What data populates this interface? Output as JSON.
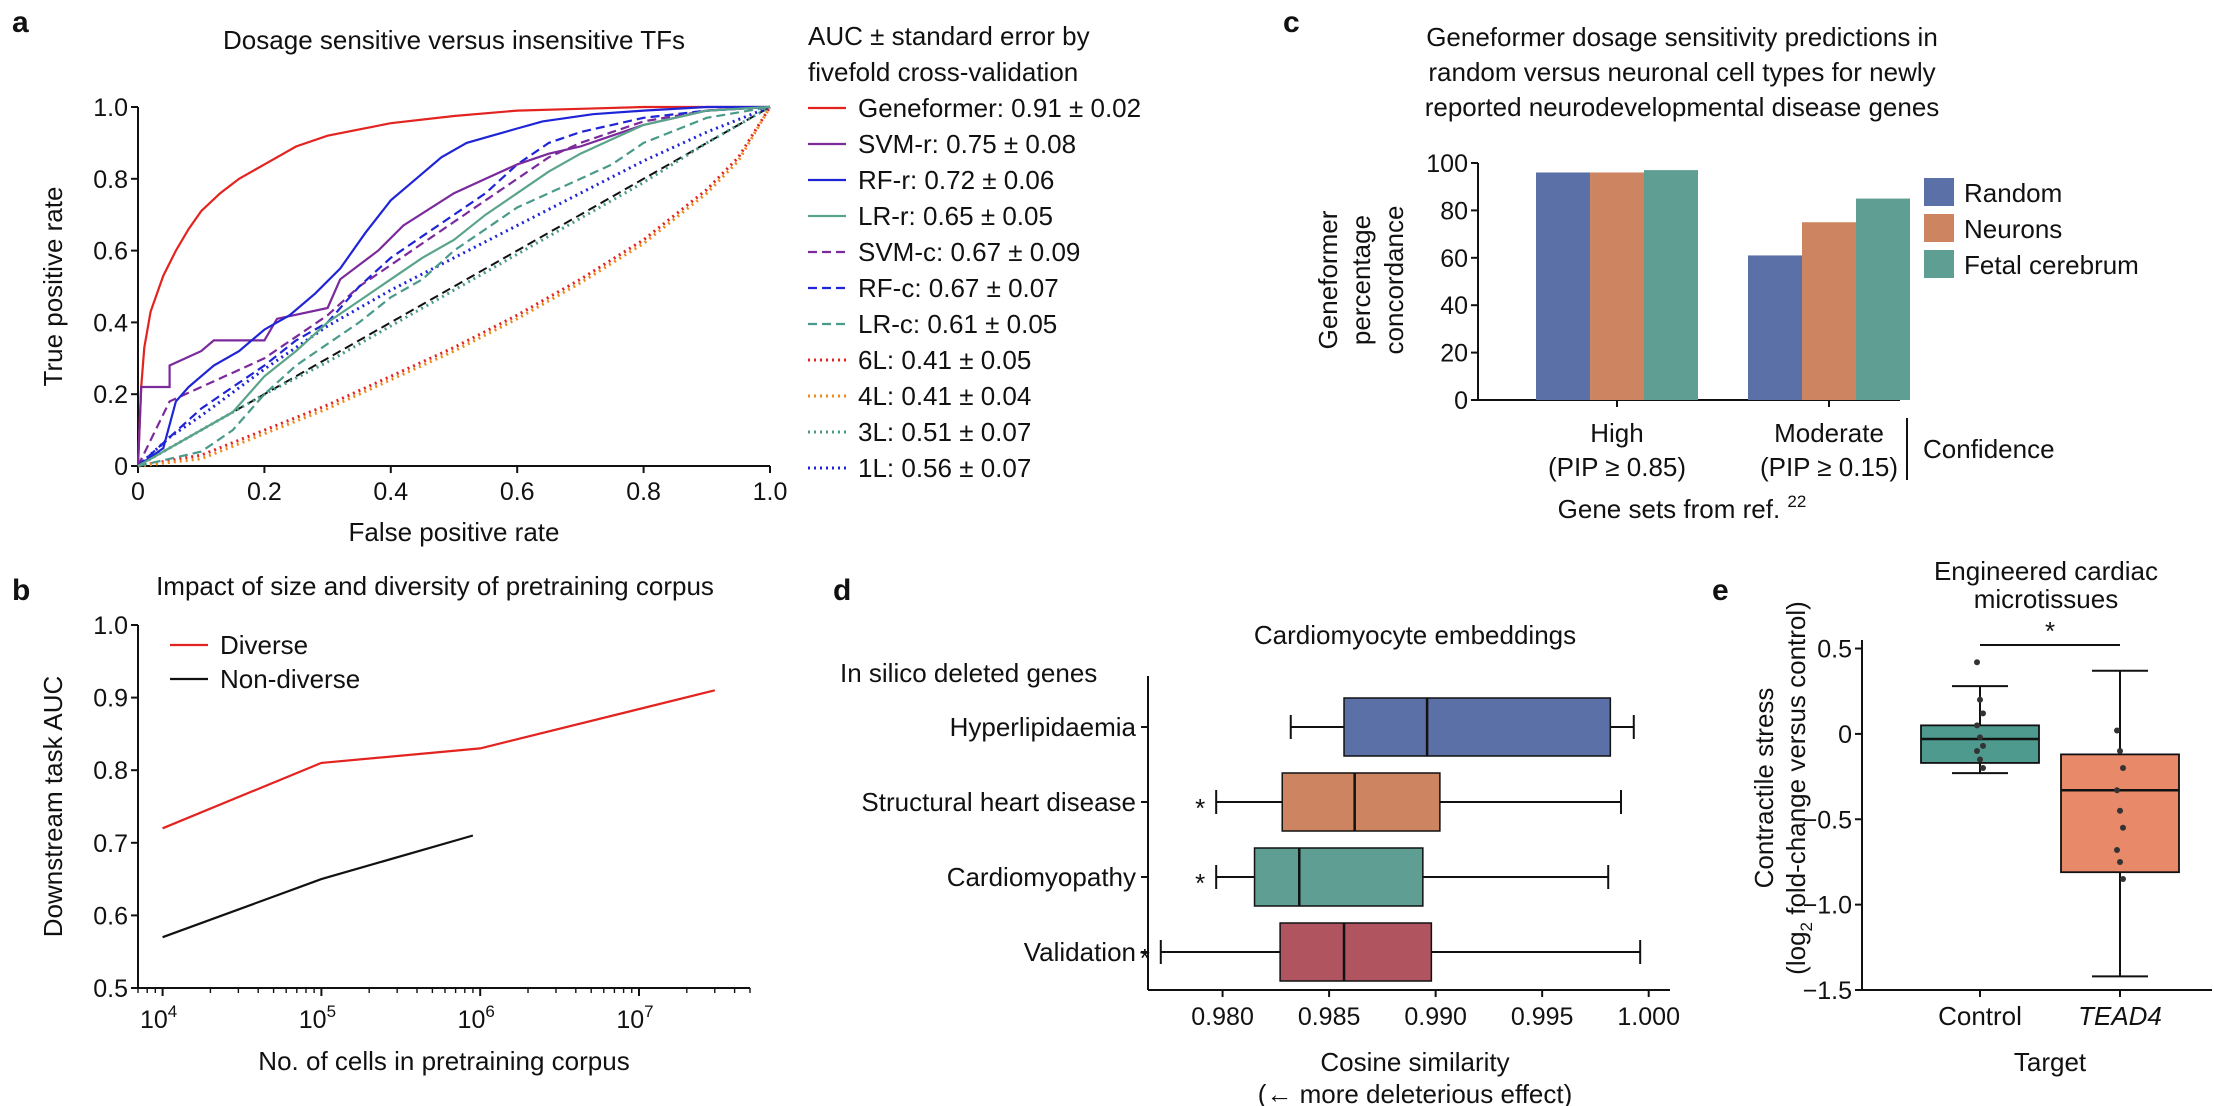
{
  "panel_letters": {
    "a": "a",
    "b": "b",
    "c": "c",
    "d": "d",
    "e": "e"
  },
  "colors": {
    "random": "#5b70a6",
    "neurons": "#cc8560",
    "fetal": "#5e9e93",
    "red": "#e3231f",
    "purple": "#7b2a9c",
    "blue": "#1f25d6",
    "teal": "#5aa48a",
    "lr_c": "#4a9a8a",
    "orange": "#f08a1c",
    "hyper": "#5b70a6",
    "structural": "#cc8560",
    "cardio": "#5e9e93",
    "validation": "#b05560",
    "control": "#4e9a8e",
    "tead4": "#e88a6a"
  },
  "chart_data": [
    {
      "panel": "a",
      "type": "line",
      "title": "Dosage sensitive versus insensitive TFs",
      "xlabel": "False positive rate",
      "ylabel": "True positive rate",
      "xlim": [
        0,
        1
      ],
      "ylim": [
        0,
        1
      ],
      "xticks": [
        "0",
        "0.2",
        "0.4",
        "0.6",
        "0.8",
        "1.0"
      ],
      "yticks": [
        "0",
        "0.2",
        "0.4",
        "0.6",
        "0.8",
        "1.0"
      ],
      "legend_title_lines": [
        "AUC ± standard error by",
        "fivefold cross-validation"
      ],
      "legend_position": "right",
      "series": [
        {
          "name": "Geneformer: 0.91 ± 0.02",
          "style": "solid",
          "color": "#e3231f",
          "x": [
            0,
            0.005,
            0.01,
            0.02,
            0.04,
            0.06,
            0.08,
            0.1,
            0.13,
            0.16,
            0.2,
            0.25,
            0.3,
            0.4,
            0.5,
            0.6,
            0.7,
            0.8,
            0.9,
            1.0
          ],
          "y": [
            0,
            0.22,
            0.33,
            0.43,
            0.53,
            0.6,
            0.66,
            0.71,
            0.76,
            0.8,
            0.84,
            0.89,
            0.92,
            0.955,
            0.975,
            0.99,
            0.995,
            1.0,
            1.0,
            1.0
          ]
        },
        {
          "name": "SVM-r: 0.75 ± 0.08",
          "style": "solid",
          "color": "#7b2a9c",
          "x": [
            0,
            0.005,
            0.05,
            0.05,
            0.1,
            0.12,
            0.2,
            0.22,
            0.3,
            0.32,
            0.38,
            0.42,
            0.5,
            0.55,
            0.6,
            0.65,
            0.7,
            0.75,
            0.8,
            0.85,
            0.9,
            1.0
          ],
          "y": [
            0,
            0.22,
            0.22,
            0.28,
            0.32,
            0.35,
            0.35,
            0.41,
            0.44,
            0.52,
            0.6,
            0.67,
            0.76,
            0.8,
            0.84,
            0.87,
            0.89,
            0.92,
            0.95,
            0.97,
            0.99,
            1.0
          ]
        },
        {
          "name": "RF-r: 0.72 ± 0.06",
          "style": "solid",
          "color": "#1f25d6",
          "x": [
            0,
            0.04,
            0.06,
            0.08,
            0.12,
            0.16,
            0.2,
            0.24,
            0.28,
            0.32,
            0.36,
            0.4,
            0.44,
            0.48,
            0.52,
            0.56,
            0.6,
            0.64,
            0.68,
            0.72,
            0.8,
            0.9,
            1.0
          ],
          "y": [
            0,
            0.05,
            0.18,
            0.22,
            0.28,
            0.32,
            0.38,
            0.42,
            0.48,
            0.55,
            0.65,
            0.74,
            0.8,
            0.86,
            0.9,
            0.92,
            0.94,
            0.96,
            0.97,
            0.98,
            0.99,
            1.0,
            1.0
          ]
        },
        {
          "name": "LR-r: 0.65 ± 0.05",
          "style": "solid",
          "color": "#5aa48a",
          "x": [
            0,
            0.05,
            0.1,
            0.15,
            0.2,
            0.25,
            0.3,
            0.35,
            0.4,
            0.45,
            0.5,
            0.55,
            0.6,
            0.65,
            0.7,
            0.75,
            0.8,
            0.9,
            1.0
          ],
          "y": [
            0,
            0.05,
            0.1,
            0.15,
            0.25,
            0.32,
            0.4,
            0.46,
            0.52,
            0.58,
            0.63,
            0.7,
            0.76,
            0.82,
            0.87,
            0.91,
            0.95,
            0.99,
            1.0
          ]
        },
        {
          "name": "SVM-c: 0.67 ± 0.09",
          "style": "dash",
          "color": "#7b2a9c",
          "x": [
            0,
            0.05,
            0.1,
            0.15,
            0.2,
            0.25,
            0.3,
            0.35,
            0.4,
            0.45,
            0.5,
            0.55,
            0.6,
            0.65,
            0.7,
            0.75,
            0.8,
            0.9,
            1.0
          ],
          "y": [
            0,
            0.18,
            0.22,
            0.26,
            0.3,
            0.36,
            0.42,
            0.5,
            0.56,
            0.62,
            0.68,
            0.74,
            0.8,
            0.86,
            0.9,
            0.93,
            0.96,
            0.99,
            1.0
          ]
        },
        {
          "name": "RF-c: 0.67 ± 0.07",
          "style": "dash",
          "color": "#1f25d6",
          "x": [
            0,
            0.05,
            0.1,
            0.15,
            0.2,
            0.25,
            0.3,
            0.35,
            0.4,
            0.45,
            0.5,
            0.55,
            0.6,
            0.65,
            0.7,
            0.8,
            0.9,
            1.0
          ],
          "y": [
            0,
            0.08,
            0.16,
            0.22,
            0.28,
            0.35,
            0.4,
            0.5,
            0.58,
            0.64,
            0.7,
            0.76,
            0.84,
            0.9,
            0.93,
            0.97,
            0.99,
            1.0
          ]
        },
        {
          "name": "LR-c: 0.61 ± 0.05",
          "style": "dash",
          "color": "#4a9a8a",
          "x": [
            0,
            0.1,
            0.15,
            0.2,
            0.25,
            0.3,
            0.35,
            0.4,
            0.45,
            0.5,
            0.55,
            0.6,
            0.65,
            0.7,
            0.75,
            0.8,
            0.9,
            1.0
          ],
          "y": [
            0,
            0.04,
            0.1,
            0.2,
            0.28,
            0.34,
            0.4,
            0.47,
            0.52,
            0.6,
            0.66,
            0.72,
            0.76,
            0.8,
            0.84,
            0.9,
            0.97,
            1.0
          ]
        },
        {
          "name": "6L: 0.41 ± 0.05",
          "style": "dot",
          "color": "#e3231f",
          "x": [
            0,
            0.1,
            0.2,
            0.3,
            0.4,
            0.5,
            0.6,
            0.7,
            0.8,
            0.9,
            0.95,
            1.0
          ],
          "y": [
            0,
            0.03,
            0.1,
            0.17,
            0.25,
            0.33,
            0.42,
            0.52,
            0.63,
            0.77,
            0.86,
            1.0
          ]
        },
        {
          "name": "4L: 0.41 ± 0.04",
          "style": "dot",
          "color": "#f08a1c",
          "x": [
            0,
            0.1,
            0.2,
            0.3,
            0.4,
            0.5,
            0.6,
            0.7,
            0.8,
            0.9,
            0.95,
            1.0
          ],
          "y": [
            0,
            0.02,
            0.09,
            0.16,
            0.24,
            0.32,
            0.41,
            0.51,
            0.62,
            0.76,
            0.85,
            1.0
          ]
        },
        {
          "name": "3L: 0.51 ± 0.07",
          "style": "dot",
          "color": "#4a9a8a",
          "x": [
            0,
            0.1,
            0.2,
            0.3,
            0.4,
            0.5,
            0.6,
            0.7,
            0.8,
            0.9,
            1.0
          ],
          "y": [
            0,
            0.1,
            0.2,
            0.29,
            0.39,
            0.49,
            0.59,
            0.69,
            0.79,
            0.9,
            1.0
          ]
        },
        {
          "name": "1L: 0.56 ± 0.07",
          "style": "dot",
          "color": "#1f25d6",
          "x": [
            0,
            0.05,
            0.1,
            0.2,
            0.3,
            0.4,
            0.5,
            0.6,
            0.7,
            0.8,
            0.9,
            1.0
          ],
          "y": [
            0,
            0.08,
            0.14,
            0.27,
            0.39,
            0.49,
            0.58,
            0.67,
            0.76,
            0.85,
            0.93,
            1.0
          ]
        }
      ],
      "reference_line": {
        "x": [
          0,
          1
        ],
        "y": [
          0,
          1
        ],
        "style": "dash",
        "color": "#111111"
      }
    },
    {
      "panel": "b",
      "type": "line",
      "title": "Impact of size and diversity of pretraining corpus",
      "xlabel": "No. of cells in pretraining corpus",
      "ylabel": "Downstream task AUC",
      "xscale": "log",
      "xlim": [
        7000,
        50000000
      ],
      "ylim": [
        0.5,
        1.0
      ],
      "xticks": [
        {
          "base": "10",
          "exp": "4"
        },
        {
          "base": "10",
          "exp": "5"
        },
        {
          "base": "10",
          "exp": "6"
        },
        {
          "base": "10",
          "exp": "7"
        }
      ],
      "yticks": [
        "0.5",
        "0.6",
        "0.7",
        "0.8",
        "0.9",
        "1.0"
      ],
      "legend_position": "top-left",
      "series": [
        {
          "name": "Diverse",
          "color": "#e3231f",
          "x": [
            10000,
            100000,
            1000000,
            30000000
          ],
          "y": [
            0.72,
            0.81,
            0.83,
            0.91
          ]
        },
        {
          "name": "Non-diverse",
          "color": "#111111",
          "x": [
            10000,
            100000,
            900000
          ],
          "y": [
            0.57,
            0.65,
            0.71
          ]
        }
      ]
    },
    {
      "panel": "c",
      "type": "bar",
      "title_lines": [
        "Geneformer dosage sensitivity predictions in",
        "random versus neuronal cell types for newly",
        "reported neurodevelopmental disease genes"
      ],
      "ylabel_lines": [
        "Geneformer",
        "percentage",
        "concordance"
      ],
      "xlabel": "Gene sets from ref.",
      "xlabel_sup": "22",
      "ylim": [
        0,
        100
      ],
      "yticks": [
        "0",
        "20",
        "40",
        "60",
        "80",
        "100"
      ],
      "categories": [
        {
          "line1": "High",
          "line2": "(PIP ≥ 0.85)"
        },
        {
          "line1": "Moderate",
          "line2": "(PIP ≥ 0.15)"
        }
      ],
      "group_label": "Confidence",
      "legend_position": "right",
      "series": [
        {
          "name": "Random",
          "values": [
            96,
            61
          ]
        },
        {
          "name": "Neurons",
          "values": [
            96,
            75
          ]
        },
        {
          "name": "Fetal cerebrum",
          "values": [
            97,
            85
          ]
        }
      ]
    },
    {
      "panel": "d",
      "type": "box",
      "title": "Cardiomyocyte embeddings",
      "group_header": "In silico deleted genes",
      "xlabel": "Cosine similarity",
      "xlabel2": "(← more deleterious effect)",
      "xlim": [
        0.9765,
        1.001
      ],
      "xticks": [
        "0.980",
        "0.985",
        "0.990",
        "0.995",
        "1.000"
      ],
      "significance_mark": "*",
      "boxes": [
        {
          "label": "Hyperlipidaemia",
          "whisker_low": 0.9832,
          "q1": 0.9857,
          "median": 0.9896,
          "q3": 0.9982,
          "whisker_high": 0.9993,
          "star": false
        },
        {
          "label": "Structural heart disease",
          "whisker_low": 0.9797,
          "q1": 0.9828,
          "median": 0.9862,
          "q3": 0.9902,
          "whisker_high": 0.9987,
          "star": true
        },
        {
          "label": "Cardiomyopathy",
          "whisker_low": 0.9797,
          "q1": 0.9815,
          "median": 0.9836,
          "q3": 0.9894,
          "whisker_high": 0.9981,
          "star": true
        },
        {
          "label": "Validation",
          "whisker_low": 0.9771,
          "q1": 0.9827,
          "median": 0.9857,
          "q3": 0.9898,
          "whisker_high": 0.9996,
          "star": true
        }
      ]
    },
    {
      "panel": "e",
      "type": "box",
      "title_lines": [
        "Engineered cardiac",
        "microtissues"
      ],
      "ylabel_line1": "Contractile stress",
      "ylabel_line2": {
        "pre": "(log",
        "sub": "2",
        "post": " fold-change versus control)"
      },
      "xlabel": "Target",
      "ylim": [
        -1.5,
        0.55
      ],
      "yticks": [
        "0.5",
        "0",
        "−0.5",
        "−1.0",
        "−1.5"
      ],
      "significance_mark": "*",
      "boxes": [
        {
          "label": "Control",
          "italic": false,
          "whisker_low": -0.23,
          "q1": -0.17,
          "median": -0.03,
          "q3": 0.05,
          "whisker_high": 0.28,
          "points": [
            0.42,
            0.2,
            0.12,
            0.05,
            -0.02,
            -0.07,
            -0.1,
            -0.15,
            -0.2
          ]
        },
        {
          "label": "TEAD4",
          "italic": true,
          "whisker_low": -1.42,
          "q1": -0.81,
          "median": -0.33,
          "q3": -0.12,
          "whisker_high": 0.37,
          "points": [
            0.02,
            -0.1,
            -0.2,
            -0.33,
            -0.45,
            -0.55,
            -0.68,
            -0.75,
            -0.85
          ]
        }
      ]
    }
  ]
}
